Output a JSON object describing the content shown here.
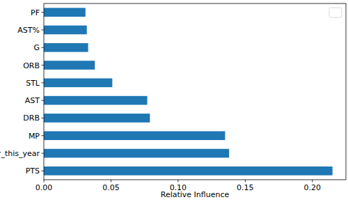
{
  "chart_data": {
    "type": "bar",
    "orientation": "horizontal",
    "categories": [
      "PTS",
      "all_star_this_year",
      "MP",
      "DRB",
      "AST",
      "STL",
      "ORB",
      "G",
      "AST%",
      "PF"
    ],
    "values": [
      0.215,
      0.138,
      0.135,
      0.079,
      0.077,
      0.051,
      0.038,
      0.033,
      0.032,
      0.031
    ],
    "color": "#1f77b4",
    "xlabel": "Relative Influence",
    "xlim": [
      0,
      0.225
    ],
    "xticks": [
      {
        "value": 0,
        "label": "0.00"
      },
      {
        "value": 0.05,
        "label": "0.05"
      },
      {
        "value": 0.1,
        "label": "0.10"
      },
      {
        "value": 0.15,
        "label": "0.15"
      },
      {
        "value": 0.2,
        "label": "0.20"
      }
    ],
    "legend": "upper right",
    "grid": false
  }
}
